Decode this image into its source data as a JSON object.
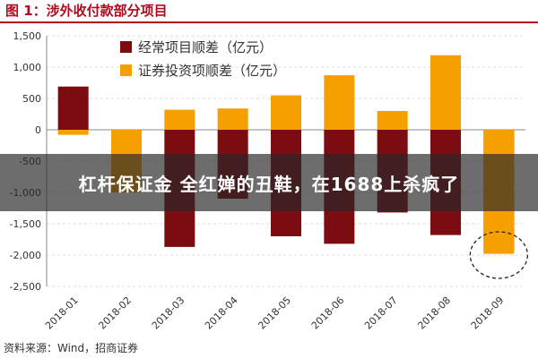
{
  "figure_title": "图 1：涉外收付款部分项目",
  "overlay_text": "杠杆保证金 全红婵的丑鞋，在1688上杀疯了",
  "source": "资料来源：Wind，招商证券",
  "colors": {
    "current_account": "#7b0c10",
    "securities_investment": "#f5a000",
    "title": "#b2091e",
    "axis": "#888888",
    "grid": "#bbbbbb"
  },
  "chart_data": {
    "type": "bar",
    "categories": [
      "2018-01",
      "2018-02",
      "2018-03",
      "2018-04",
      "2018-05",
      "2018-06",
      "2018-07",
      "2018-08",
      "2018-09"
    ],
    "series": [
      {
        "name": "经常项目顺差（亿元）",
        "values": [
          690,
          -700,
          -1870,
          -1100,
          -1700,
          -1820,
          -1320,
          -1680,
          -1930
        ]
      },
      {
        "name": "证券投资项顺差（亿元）",
        "values": [
          -80,
          -1000,
          320,
          340,
          550,
          870,
          300,
          1190,
          -1980
        ]
      }
    ],
    "yticks": [
      "1,500",
      "1,000",
      "500",
      "0",
      "-500",
      "-1,000",
      "-1,500",
      "-2,000",
      "-2,500"
    ],
    "ylim": [
      -2500,
      1500
    ],
    "legend_position": "top-center",
    "annotation": "dashed-circle-around-2018-09"
  }
}
